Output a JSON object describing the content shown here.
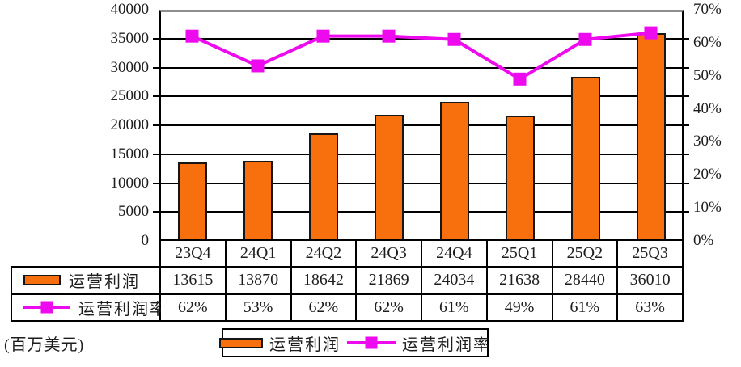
{
  "unit_label": "(百万美元)",
  "colors": {
    "bar_fill": "#F8700D",
    "bar_border": "#161616",
    "line": "#EE0AEE",
    "marker": "#EE0AEE",
    "grid": "#000000",
    "plot_top_border": "#8F8F8F",
    "text": "#1D1D1D"
  },
  "chart_data": {
    "type": "combo",
    "categories": [
      "23Q4",
      "24Q1",
      "24Q2",
      "24Q3",
      "24Q4",
      "25Q1",
      "25Q2",
      "25Q3"
    ],
    "series": [
      {
        "name": "运营利润",
        "type": "bar",
        "axis": "left",
        "color": "#F8700D",
        "values": [
          13615,
          13870,
          18642,
          21869,
          24034,
          21638,
          28440,
          36010
        ]
      },
      {
        "name": "运营利润率",
        "type": "line",
        "axis": "right",
        "color": "#EE0AEE",
        "values": [
          62,
          53,
          62,
          62,
          61,
          49,
          61,
          63
        ],
        "labels": [
          "62%",
          "53%",
          "62%",
          "62%",
          "61%",
          "49%",
          "61%",
          "63%"
        ]
      }
    ],
    "left_axis": {
      "min": 0,
      "max": 40000,
      "step": 5000,
      "labels": [
        "0",
        "5000",
        "10000",
        "15000",
        "20000",
        "25000",
        "30000",
        "35000",
        "40000"
      ]
    },
    "right_axis": {
      "min": 0,
      "max": 70,
      "step": 10,
      "labels": [
        "0%",
        "10%",
        "20%",
        "30%",
        "40%",
        "50%",
        "60%",
        "70%"
      ]
    },
    "grid": true,
    "legend_position": "bottom"
  },
  "table": {
    "columns": [
      "23Q4",
      "24Q1",
      "24Q2",
      "24Q3",
      "24Q4",
      "25Q1",
      "25Q2",
      "25Q3"
    ],
    "rows": [
      {
        "key": "bar",
        "label": "运营利润",
        "values": [
          "13615",
          "13870",
          "18642",
          "21869",
          "24034",
          "21638",
          "28440",
          "36010"
        ]
      },
      {
        "key": "line",
        "label": "运营利润率",
        "values": [
          "62%",
          "53%",
          "62%",
          "62%",
          "61%",
          "49%",
          "61%",
          "63%"
        ]
      }
    ]
  },
  "legend": {
    "items": [
      {
        "key": "bar",
        "label": "运营利润"
      },
      {
        "key": "line",
        "label": "运营利润率"
      }
    ]
  }
}
